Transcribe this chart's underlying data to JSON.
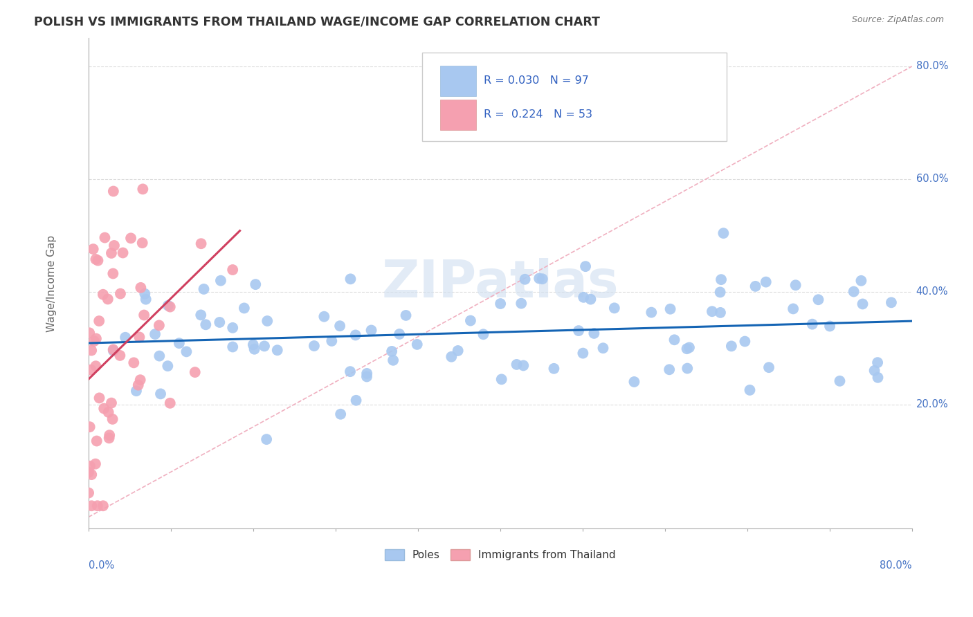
{
  "title": "POLISH VS IMMIGRANTS FROM THAILAND WAGE/INCOME GAP CORRELATION CHART",
  "source": "Source: ZipAtlas.com",
  "ylabel": "Wage/Income Gap",
  "watermark": "ZIPatlas",
  "poles_R": 0.03,
  "poles_N": 97,
  "thailand_R": 0.224,
  "thailand_N": 53,
  "xlim": [
    0.0,
    0.8
  ],
  "ylim": [
    -0.02,
    0.85
  ],
  "poles_color": "#a8c8f0",
  "poles_line_color": "#1464b4",
  "thailand_color": "#f5a0b0",
  "thailand_line_color": "#d04060",
  "diagonal_color": "#f0b0c0",
  "background_color": "#ffffff",
  "title_color": "#333333",
  "axis_label_color": "#4472c4",
  "legend_R_N_color": "#3060c0",
  "grid_color": "#dddddd",
  "right_label_color": "#4472c4"
}
